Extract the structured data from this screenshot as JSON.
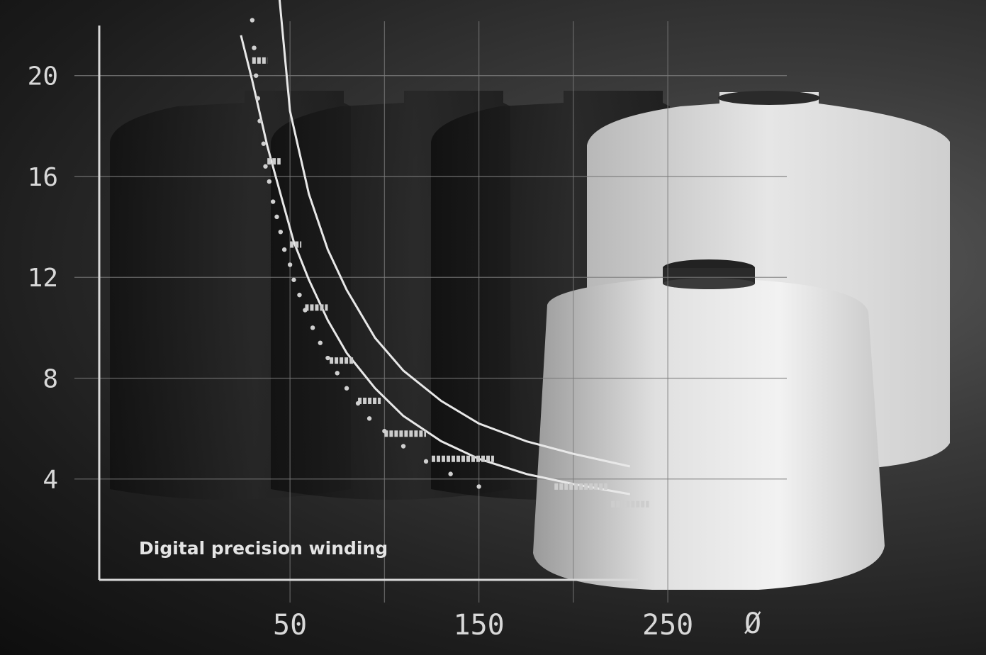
{
  "chart_data": {
    "type": "line",
    "title": "",
    "annotation": "Digital precision winding",
    "xlabel": "",
    "ylabel": "",
    "x_axis_symbol": "Ø",
    "xticks": [
      50,
      150,
      250
    ],
    "yticks": [
      4,
      8,
      12,
      16,
      20
    ],
    "xlim": [
      -51,
      313
    ],
    "ylim": [
      0,
      23
    ],
    "grid": true,
    "series": [
      {
        "style": "upper-curve",
        "x": [
          42,
          50,
          60,
          70,
          80,
          95,
          110,
          130,
          150,
          175,
          200,
          230
        ],
        "y": [
          25.0,
          18.6,
          15.3,
          13.1,
          11.5,
          9.6,
          8.3,
          7.1,
          6.2,
          5.5,
          5.0,
          4.5
        ]
      },
      {
        "style": "lower-curve",
        "x": [
          24,
          30,
          38,
          45,
          52,
          60,
          70,
          80,
          95,
          110,
          130,
          150,
          175,
          200,
          230
        ],
        "y": [
          21.6,
          19.8,
          17.2,
          15.3,
          13.4,
          11.9,
          10.3,
          9.0,
          7.6,
          6.5,
          5.5,
          4.8,
          4.2,
          3.8,
          3.4
        ]
      },
      {
        "style": "stepped-bars",
        "segments": [
          {
            "x0": 30,
            "x1": 38,
            "y": 20.6
          },
          {
            "x0": 38,
            "x1": 45,
            "y": 16.6
          },
          {
            "x0": 50,
            "x1": 56,
            "y": 13.3
          },
          {
            "x0": 58,
            "x1": 70,
            "y": 10.8
          },
          {
            "x0": 71,
            "x1": 84,
            "y": 8.7
          },
          {
            "x0": 86,
            "x1": 98,
            "y": 7.1
          },
          {
            "x0": 100,
            "x1": 122,
            "y": 5.8
          },
          {
            "x0": 125,
            "x1": 158,
            "y": 4.8
          },
          {
            "x0": 190,
            "x1": 218,
            "y": 3.7
          },
          {
            "x0": 220,
            "x1": 240,
            "y": 3.0
          }
        ]
      },
      {
        "style": "dots",
        "x": [
          30,
          31,
          32,
          33,
          34,
          36,
          37,
          39,
          41,
          43,
          45,
          47,
          50,
          52,
          55,
          58,
          62,
          66,
          70,
          75,
          80,
          86,
          92,
          100,
          110,
          122,
          135,
          150
        ],
        "y": [
          22.2,
          21.1,
          20.0,
          19.1,
          18.2,
          17.3,
          16.4,
          15.8,
          15.0,
          14.4,
          13.8,
          13.1,
          12.5,
          11.9,
          11.3,
          10.7,
          10.0,
          9.4,
          8.8,
          8.2,
          7.6,
          7.0,
          6.4,
          5.9,
          5.3,
          4.7,
          4.2,
          3.7
        ]
      }
    ]
  },
  "colors": {
    "axis": "#d8d8d8",
    "grid": "#7a7a7a",
    "curve": "#e8e8e8",
    "bars": "#cdcdcd",
    "dots": "#d0d0d0"
  }
}
